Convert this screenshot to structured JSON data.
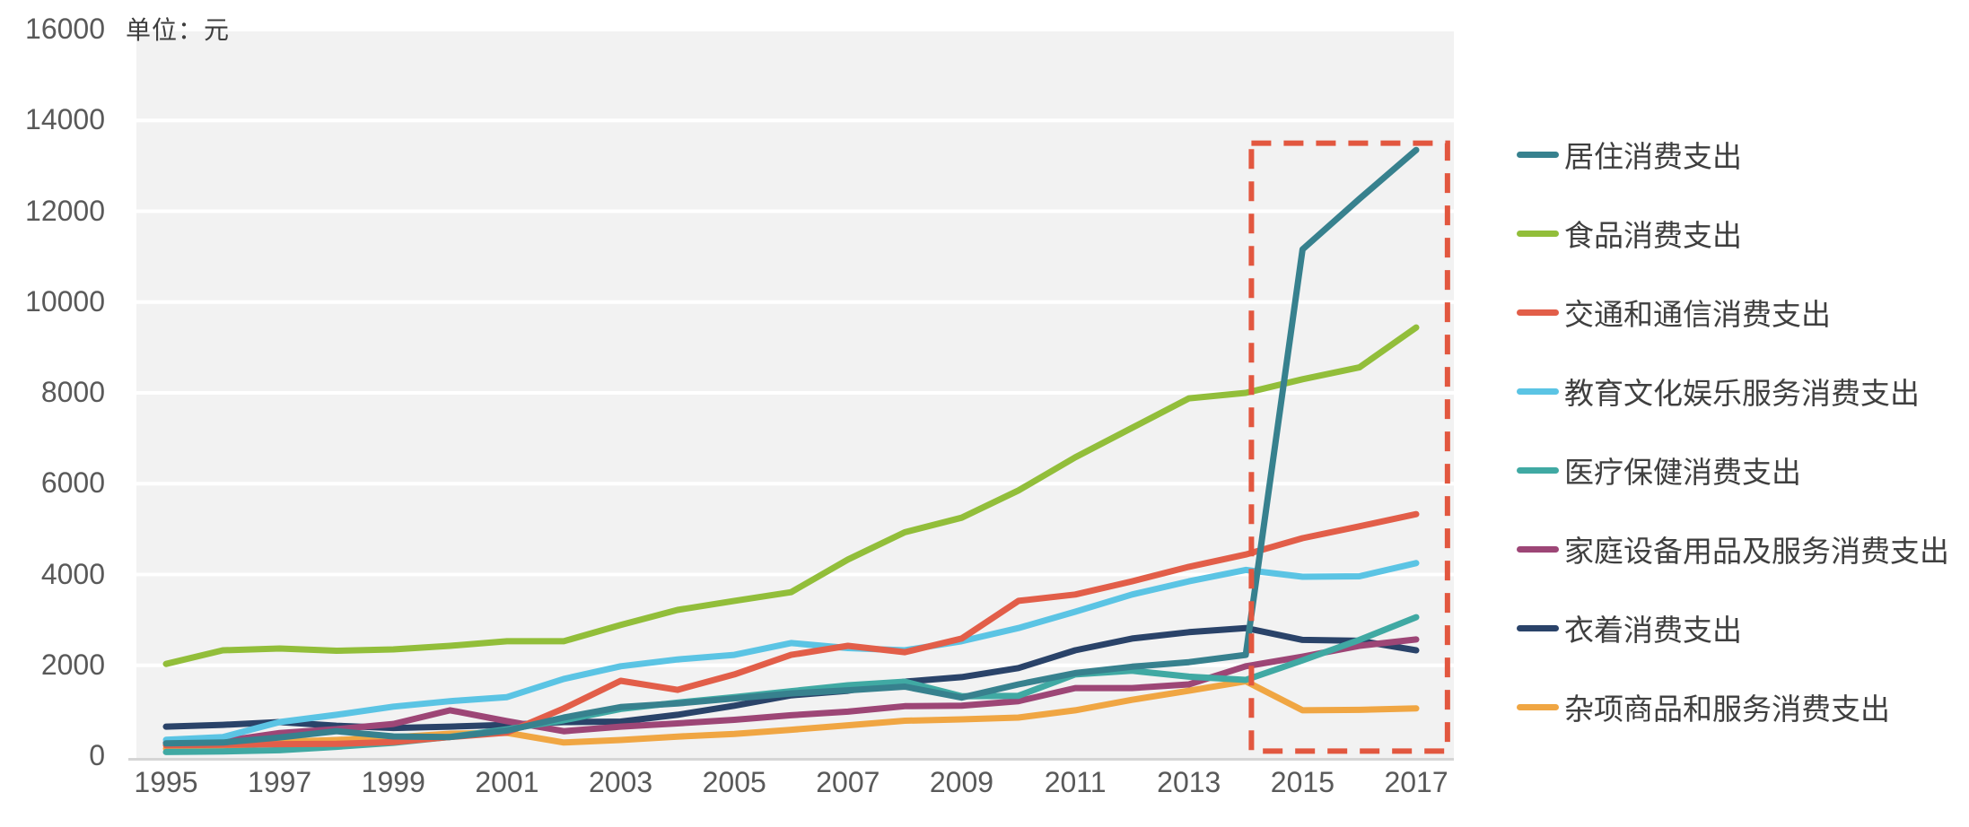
{
  "chart_data": {
    "type": "line",
    "unit_label": "单位：元",
    "years": [
      1995,
      1996,
      1997,
      1998,
      1999,
      2000,
      2001,
      2002,
      2003,
      2004,
      2005,
      2006,
      2007,
      2008,
      2009,
      2010,
      2011,
      2012,
      2013,
      2014,
      2015,
      2016,
      2017
    ],
    "x_tick_labels": [
      "1995",
      "1997",
      "1999",
      "2001",
      "2003",
      "2005",
      "2007",
      "2009",
      "2011",
      "2013",
      "2015",
      "2017"
    ],
    "y_ticks": [
      0,
      2000,
      4000,
      6000,
      8000,
      10000,
      12000,
      14000,
      16000
    ],
    "y_tick_labels": [
      "0",
      "2000",
      "4000",
      "6000",
      "8000",
      "10000",
      "12000",
      "14000",
      "16000"
    ],
    "ylim": [
      0,
      16000
    ],
    "grid": "horizontal-white-on-gray",
    "legend_position": "right",
    "series": [
      {
        "name": "居住消费支出",
        "color": "#37818E",
        "values": [
          280,
          300,
          410,
          550,
          435,
          420,
          565,
          850,
          1080,
          1160,
          1270,
          1380,
          1450,
          1530,
          1290,
          1580,
          1830,
          1970,
          2070,
          2230,
          11160,
          12270,
          13350
        ]
      },
      {
        "name": "食品消费支出",
        "color": "#92BE3A",
        "values": [
          2030,
          2330,
          2370,
          2320,
          2350,
          2430,
          2530,
          2530,
          2890,
          3220,
          3420,
          3610,
          4330,
          4930,
          5250,
          5850,
          6580,
          7230,
          7880,
          8000,
          8300,
          8560,
          9440
        ]
      },
      {
        "name": "交通和通信消费支出",
        "color": "#E25E49",
        "values": [
          240,
          250,
          265,
          270,
          310,
          420,
          520,
          1050,
          1660,
          1460,
          1800,
          2230,
          2430,
          2290,
          2590,
          3420,
          3560,
          3850,
          4170,
          4440,
          4800,
          5060,
          5330
        ]
      },
      {
        "name": "教育文化娱乐服务消费支出",
        "color": "#5BC4E4",
        "values": [
          360,
          420,
          750,
          910,
          1090,
          1210,
          1300,
          1700,
          1980,
          2130,
          2230,
          2490,
          2380,
          2330,
          2530,
          2820,
          3180,
          3560,
          3850,
          4100,
          3950,
          3960,
          4250
        ]
      },
      {
        "name": "医疗保健消费支出",
        "color": "#40A9A3",
        "values": [
          90,
          105,
          130,
          205,
          295,
          425,
          590,
          790,
          1040,
          1180,
          1300,
          1430,
          1560,
          1640,
          1320,
          1330,
          1800,
          1880,
          1750,
          1680,
          2110,
          2560,
          3060
        ]
      },
      {
        "name": "家庭设备用品及服务消费支出",
        "color": "#9D4676",
        "values": [
          295,
          330,
          510,
          595,
          710,
          1010,
          770,
          550,
          650,
          720,
          800,
          900,
          980,
          1100,
          1110,
          1210,
          1500,
          1500,
          1580,
          1980,
          2190,
          2430,
          2570
        ]
      },
      {
        "name": "衣着消费支出",
        "color": "#2A4369",
        "values": [
          650,
          690,
          750,
          670,
          620,
          650,
          690,
          750,
          760,
          910,
          1110,
          1340,
          1440,
          1640,
          1740,
          1940,
          2330,
          2590,
          2730,
          2820,
          2560,
          2540,
          2330
        ]
      },
      {
        "name": "杂项商品和服务消费支出",
        "color": "#F0A643",
        "values": [
          165,
          190,
          316,
          356,
          415,
          494,
          513,
          300,
          356,
          430,
          490,
          580,
          680,
          780,
          810,
          850,
          1010,
          1240,
          1440,
          1650,
          1010,
          1020,
          1050
        ]
      }
    ],
    "highlight_box": {
      "style": "dashed",
      "color": "#E2573F",
      "year_start": 2014.1,
      "year_end": 2017.55,
      "value_bottom": 110,
      "value_top": 13500
    },
    "plot_colors": {
      "background": "#F2F2F2",
      "gridline": "#FFFFFF",
      "axis_line": "#D5D5D5"
    }
  }
}
